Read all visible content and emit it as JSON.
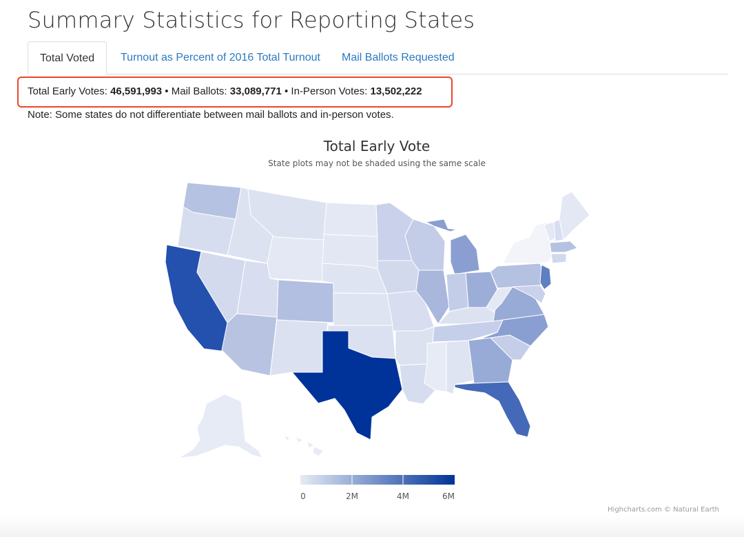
{
  "page": {
    "title": "Summary Statistics for Reporting States"
  },
  "tabs": [
    {
      "label": "Total Voted",
      "active": true
    },
    {
      "label": "Turnout as Percent of 2016 Total Turnout",
      "active": false
    },
    {
      "label": "Mail Ballots Requested",
      "active": false
    }
  ],
  "summary": {
    "total_label": "Total Early Votes: ",
    "total_value": "46,591,993",
    "sep1": " • Mail Ballots: ",
    "mail_value": "33,089,771",
    "sep2": " • In-Person Votes: ",
    "inperson_value": "13,502,222",
    "highlight_color": "#e8472a"
  },
  "note": "Note: Some states do not differentiate between mail ballots and in-person votes.",
  "chart_data": {
    "type": "choropleth",
    "title": "Total Early Vote",
    "subtitle": "State plots may not be shaded using the same scale",
    "color_scale": {
      "min_color": "#e6ebf5",
      "max_color": "#003399",
      "ticks": [
        "0",
        "2M",
        "4M",
        "6M"
      ]
    },
    "credits": "Highcharts.com © Natural Earth"
  }
}
